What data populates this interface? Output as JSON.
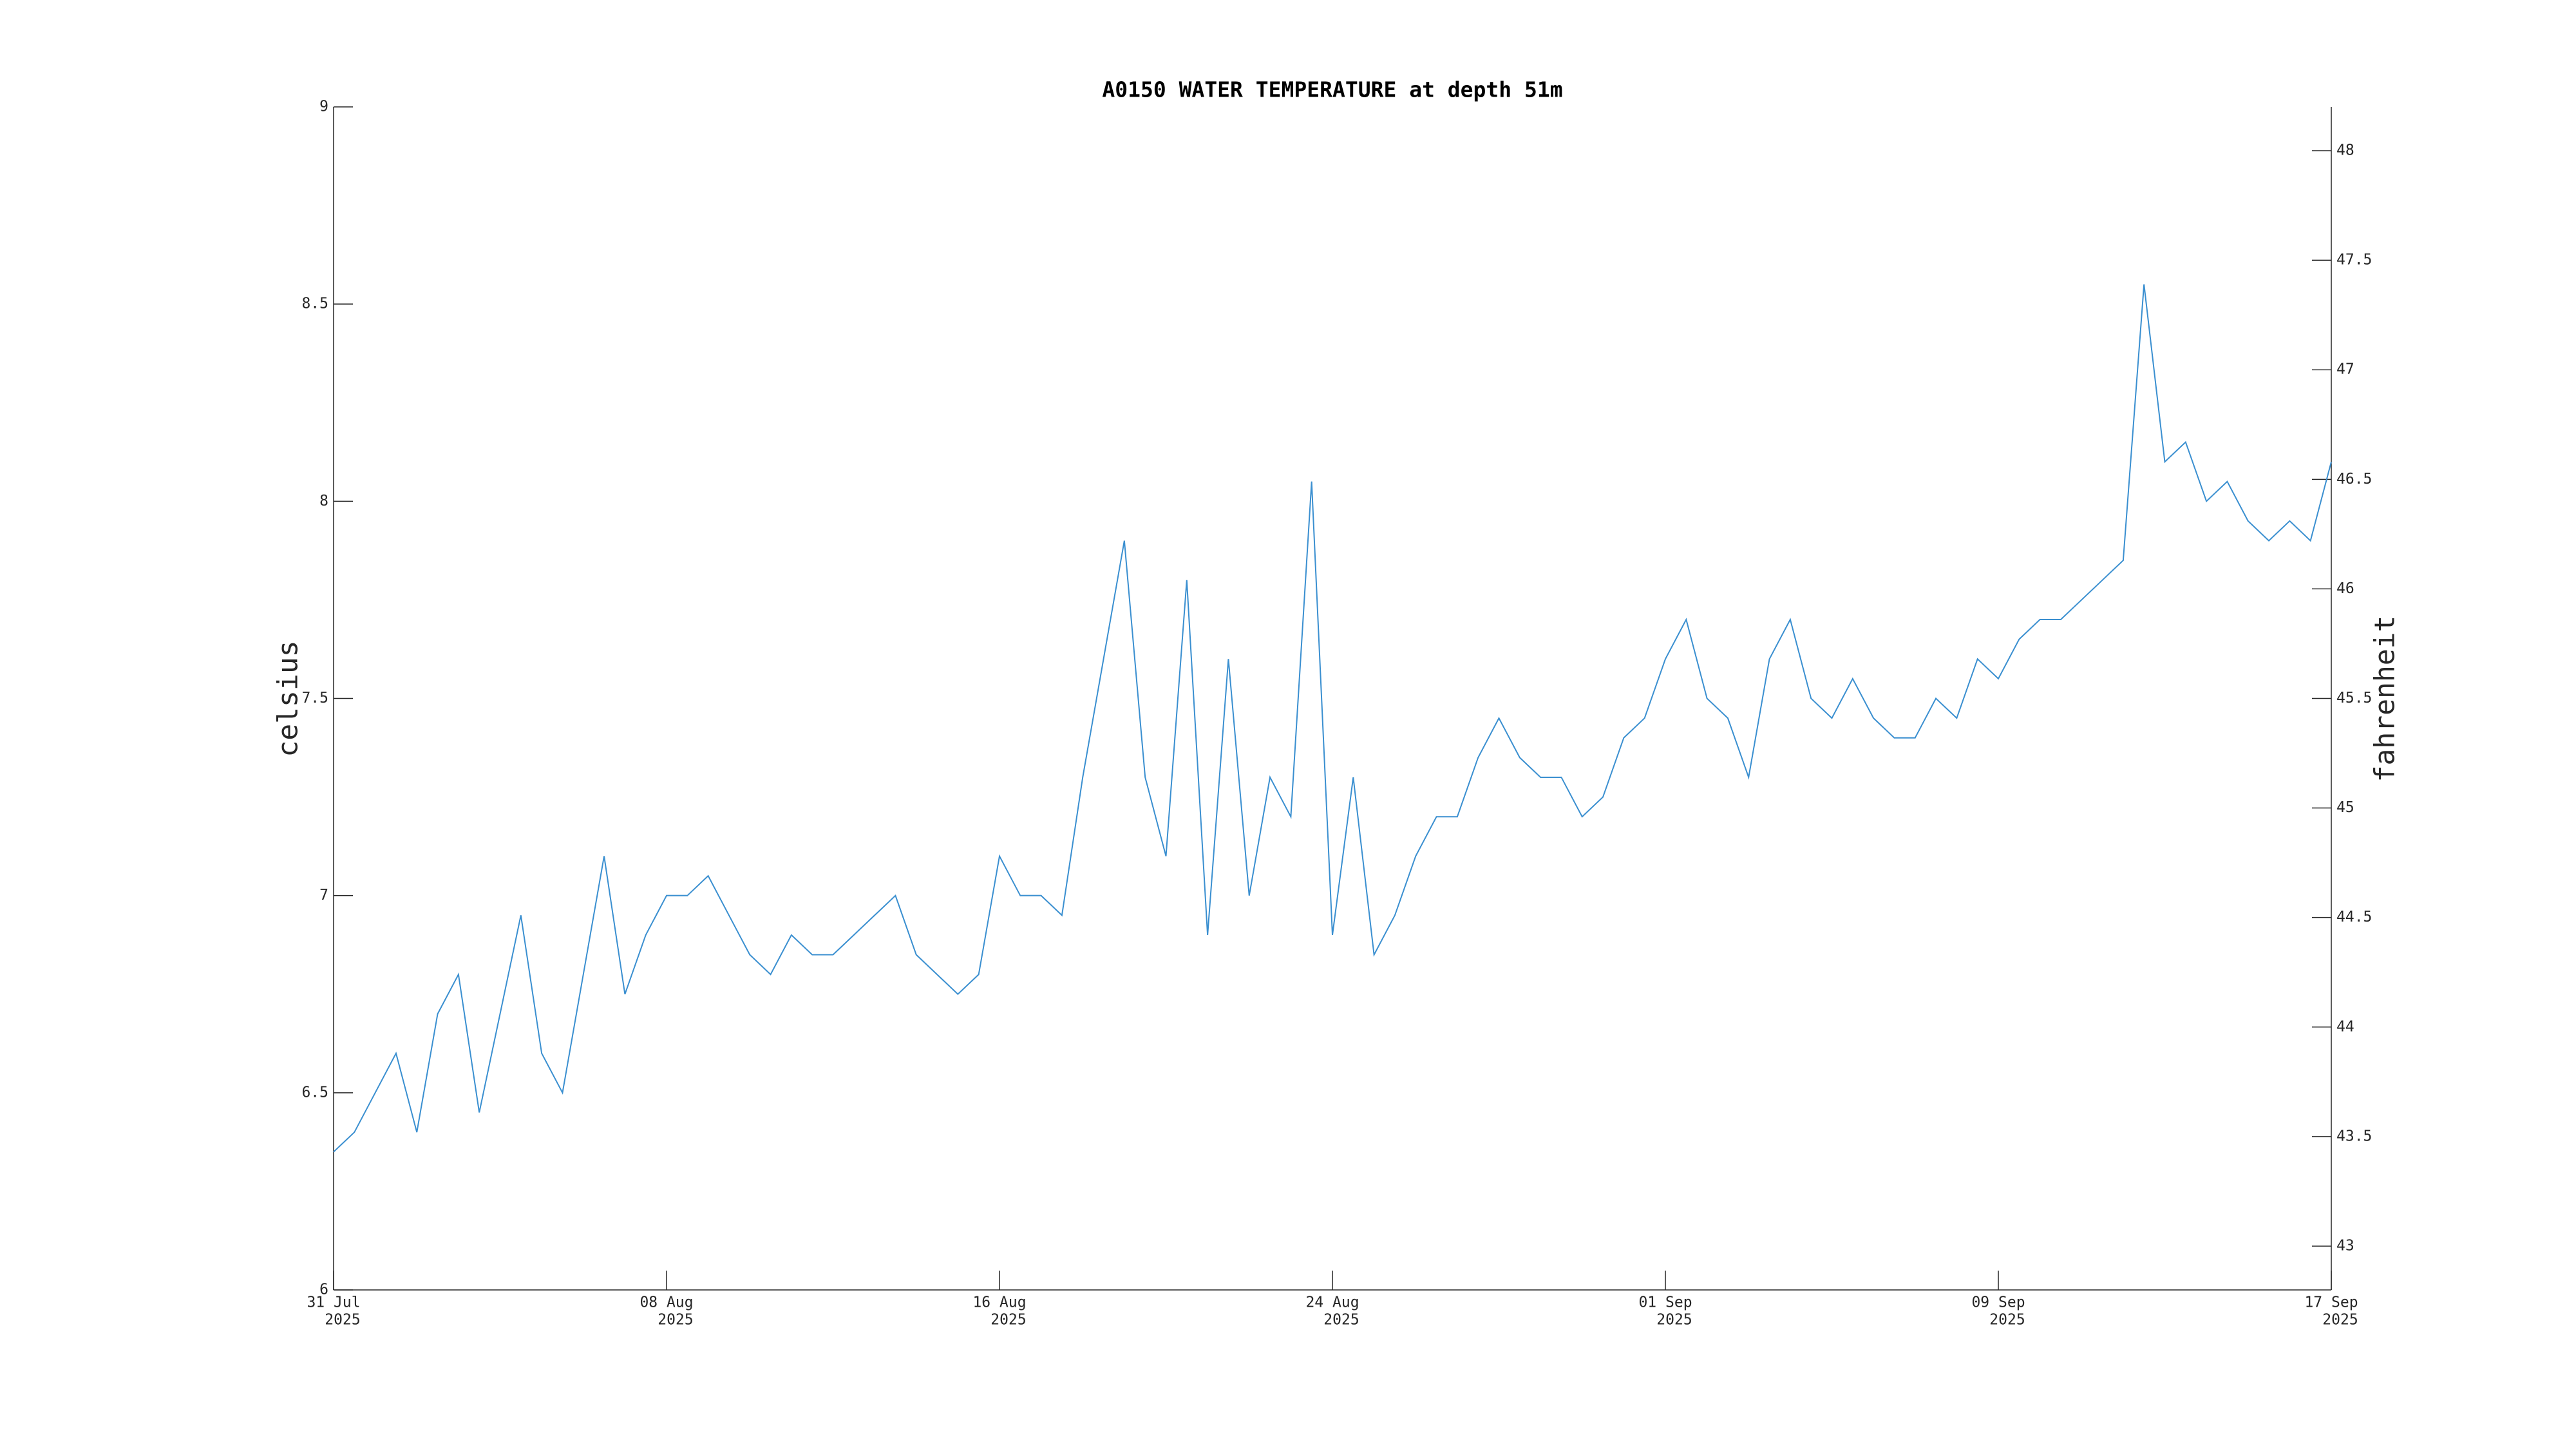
{
  "chart_data": {
    "type": "line",
    "title": "A0150 WATER TEMPERATURE at depth 51m",
    "y_label": "celsius",
    "y2_label": "fahrenheit",
    "x": [
      "2025-07-31T00:00",
      "2025-07-31T12:00",
      "2025-08-01T00:00",
      "2025-08-01T12:00",
      "2025-08-02T00:00",
      "2025-08-02T12:00",
      "2025-08-03T00:00",
      "2025-08-03T12:00",
      "2025-08-04T00:00",
      "2025-08-04T12:00",
      "2025-08-05T00:00",
      "2025-08-05T12:00",
      "2025-08-06T00:00",
      "2025-08-06T12:00",
      "2025-08-07T00:00",
      "2025-08-07T12:00",
      "2025-08-08T00:00",
      "2025-08-08T12:00",
      "2025-08-09T00:00",
      "2025-08-09T12:00",
      "2025-08-10T00:00",
      "2025-08-10T12:00",
      "2025-08-11T00:00",
      "2025-08-11T12:00",
      "2025-08-12T00:00",
      "2025-08-12T12:00",
      "2025-08-13T00:00",
      "2025-08-13T12:00",
      "2025-08-14T00:00",
      "2025-08-14T12:00",
      "2025-08-15T00:00",
      "2025-08-15T12:00",
      "2025-08-16T00:00",
      "2025-08-16T12:00",
      "2025-08-17T00:00",
      "2025-08-17T12:00",
      "2025-08-18T00:00",
      "2025-08-18T12:00",
      "2025-08-19T00:00",
      "2025-08-19T12:00",
      "2025-08-20T00:00",
      "2025-08-20T12:00",
      "2025-08-21T00:00",
      "2025-08-21T12:00",
      "2025-08-22T00:00",
      "2025-08-22T12:00",
      "2025-08-23T00:00",
      "2025-08-23T12:00",
      "2025-08-24T00:00",
      "2025-08-24T12:00",
      "2025-08-25T00:00",
      "2025-08-25T12:00",
      "2025-08-26T00:00",
      "2025-08-26T12:00",
      "2025-08-27T00:00",
      "2025-08-27T12:00",
      "2025-08-28T00:00",
      "2025-08-28T12:00",
      "2025-08-29T00:00",
      "2025-08-29T12:00",
      "2025-08-30T00:00",
      "2025-08-30T12:00",
      "2025-08-31T00:00",
      "2025-08-31T12:00",
      "2025-09-01T00:00",
      "2025-09-01T12:00",
      "2025-09-02T00:00",
      "2025-09-02T12:00",
      "2025-09-03T00:00",
      "2025-09-03T12:00",
      "2025-09-04T00:00",
      "2025-09-04T12:00",
      "2025-09-05T00:00",
      "2025-09-05T12:00",
      "2025-09-06T00:00",
      "2025-09-06T12:00",
      "2025-09-07T00:00",
      "2025-09-07T12:00",
      "2025-09-08T00:00",
      "2025-09-08T12:00",
      "2025-09-09T00:00",
      "2025-09-09T12:00",
      "2025-09-10T00:00",
      "2025-09-10T12:00",
      "2025-09-11T00:00",
      "2025-09-11T12:00",
      "2025-09-12T00:00",
      "2025-09-12T12:00",
      "2025-09-13T00:00",
      "2025-09-13T12:00",
      "2025-09-14T00:00",
      "2025-09-14T12:00",
      "2025-09-15T00:00",
      "2025-09-15T12:00",
      "2025-09-16T00:00",
      "2025-09-16T12:00",
      "2025-09-17T00:00"
    ],
    "series": [
      {
        "color": "#3a8fd0",
        "values": [
          6.35,
          6.4,
          6.5,
          6.6,
          6.4,
          6.7,
          6.8,
          6.45,
          6.7,
          6.95,
          6.6,
          6.5,
          6.8,
          7.1,
          6.75,
          6.9,
          7.0,
          7.0,
          7.05,
          6.95,
          6.85,
          6.8,
          6.9,
          6.85,
          6.85,
          6.9,
          6.95,
          7.0,
          6.85,
          6.8,
          6.75,
          6.8,
          7.1,
          7.0,
          7.0,
          6.95,
          7.3,
          7.6,
          7.9,
          7.3,
          7.1,
          7.8,
          6.9,
          7.6,
          7.0,
          7.3,
          7.2,
          8.05,
          6.9,
          7.3,
          6.85,
          6.95,
          7.1,
          7.2,
          7.2,
          7.35,
          7.45,
          7.35,
          7.3,
          7.3,
          7.2,
          7.25,
          7.4,
          7.45,
          7.6,
          7.7,
          7.5,
          7.45,
          7.3,
          7.6,
          7.7,
          7.5,
          7.45,
          7.55,
          7.45,
          7.4,
          7.4,
          7.5,
          7.45,
          7.6,
          7.55,
          7.65,
          7.7,
          7.7,
          7.75,
          7.8,
          7.85,
          8.55,
          8.1,
          8.15,
          8.0,
          8.05,
          7.95,
          7.9,
          7.95,
          7.9,
          8.1
        ]
      }
    ],
    "xlim": [
      "2025-07-31T00:00",
      "2025-09-17T00:00"
    ],
    "xticks": [
      {
        "value": "2025-07-31T00:00",
        "label": [
          "31 Jul",
          "2025"
        ]
      },
      {
        "value": "2025-08-08T00:00",
        "label": [
          "08 Aug",
          "2025"
        ]
      },
      {
        "value": "2025-08-16T00:00",
        "label": [
          "16 Aug",
          "2025"
        ]
      },
      {
        "value": "2025-08-24T00:00",
        "label": [
          "24 Aug",
          "2025"
        ]
      },
      {
        "value": "2025-09-01T00:00",
        "label": [
          "01 Sep",
          "2025"
        ]
      },
      {
        "value": "2025-09-09T00:00",
        "label": [
          "09 Sep",
          "2025"
        ]
      },
      {
        "value": "2025-09-17T00:00",
        "label": [
          "17 Sep",
          "2025"
        ]
      }
    ],
    "ylim": [
      6,
      9
    ],
    "yticks": [
      6,
      6.5,
      7,
      7.5,
      8,
      8.5,
      9
    ],
    "y2lim": [
      42.8,
      48.2
    ],
    "y2ticks": [
      43,
      43.5,
      44,
      44.5,
      45,
      45.5,
      46,
      46.5,
      47,
      47.5,
      48
    ],
    "grid": false
  }
}
